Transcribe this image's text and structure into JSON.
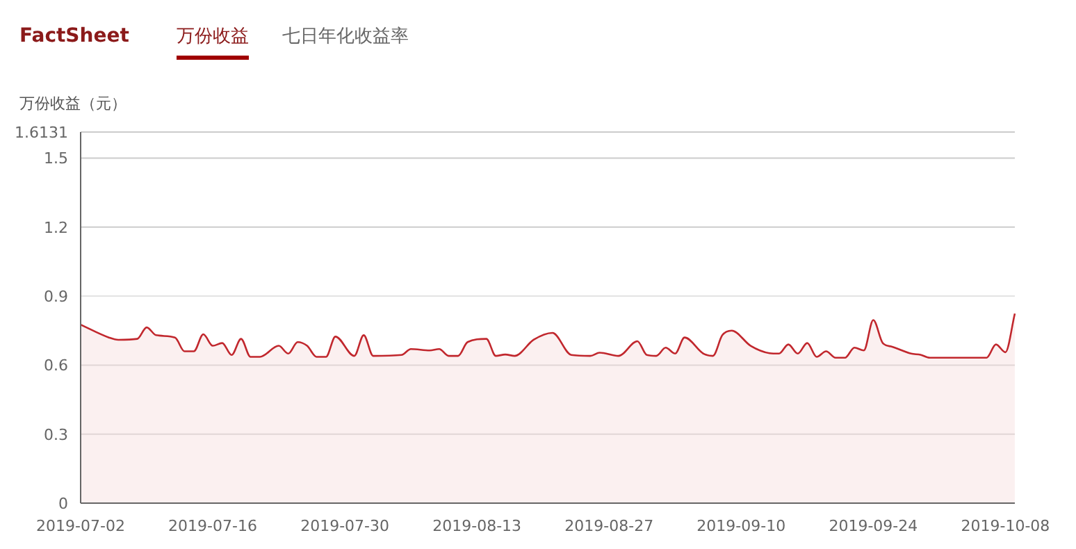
{
  "chart_data": {
    "type": "area",
    "title": "FactSheet",
    "annotations": [
      "万份收益",
      "七日年化收益率"
    ],
    "ylabel": "万份收益（元）",
    "x": [
      "2019-07-02",
      "2019-07-05",
      "2019-07-06",
      "2019-07-08",
      "2019-07-09",
      "2019-07-10",
      "2019-07-12",
      "2019-07-13",
      "2019-07-14",
      "2019-07-15",
      "2019-07-16",
      "2019-07-17",
      "2019-07-18",
      "2019-07-19",
      "2019-07-20",
      "2019-07-21",
      "2019-07-23",
      "2019-07-24",
      "2019-07-25",
      "2019-07-26",
      "2019-07-27",
      "2019-07-28",
      "2019-07-29",
      "2019-07-31",
      "2019-08-01",
      "2019-08-02",
      "2019-08-05",
      "2019-08-06",
      "2019-08-08",
      "2019-08-09",
      "2019-08-10",
      "2019-08-11",
      "2019-08-12",
      "2019-08-14",
      "2019-08-15",
      "2019-08-16",
      "2019-08-17",
      "2019-08-19",
      "2019-08-21",
      "2019-08-23",
      "2019-08-25",
      "2019-08-26",
      "2019-08-28",
      "2019-08-30",
      "2019-08-31",
      "2019-09-01",
      "2019-09-02",
      "2019-09-03",
      "2019-09-04",
      "2019-09-06",
      "2019-09-07",
      "2019-09-08",
      "2019-09-09",
      "2019-09-11",
      "2019-09-13",
      "2019-09-14",
      "2019-09-15",
      "2019-09-16",
      "2019-09-17",
      "2019-09-18",
      "2019-09-19",
      "2019-09-20",
      "2019-09-21",
      "2019-09-22",
      "2019-09-23",
      "2019-09-24",
      "2019-09-25",
      "2019-09-26",
      "2019-09-28",
      "2019-09-29",
      "2019-09-30",
      "2019-10-06",
      "2019-10-07",
      "2019-10-08",
      "2019-10-09"
    ],
    "series": [
      {
        "color": "#c1272d",
        "values": [
          0.776,
          0.72,
          0.71,
          0.714,
          0.764,
          0.73,
          0.72,
          0.66,
          0.66,
          0.734,
          0.684,
          0.696,
          0.644,
          0.714,
          0.636,
          0.636,
          0.684,
          0.65,
          0.7,
          0.684,
          0.636,
          0.636,
          0.724,
          0.64,
          0.73,
          0.64,
          0.644,
          0.67,
          0.664,
          0.67,
          0.64,
          0.64,
          0.7,
          0.714,
          0.64,
          0.646,
          0.64,
          0.71,
          0.74,
          0.644,
          0.64,
          0.654,
          0.64,
          0.704,
          0.644,
          0.64,
          0.676,
          0.65,
          0.72,
          0.65,
          0.64,
          0.73,
          0.75,
          0.684,
          0.652,
          0.65,
          0.69,
          0.65,
          0.696,
          0.636,
          0.66,
          0.632,
          0.632,
          0.676,
          0.664,
          0.796,
          0.696,
          0.68,
          0.65,
          0.645,
          0.632,
          0.632,
          0.69,
          0.656,
          0.824
        ]
      }
    ],
    "xlim": [
      "2019-07-02",
      "2019-10-09"
    ],
    "xticks": [
      "2019-07-02",
      "2019-07-16",
      "2019-07-30",
      "2019-08-13",
      "2019-08-27",
      "2019-09-10",
      "2019-09-24",
      "2019-10-08"
    ],
    "ylim": [
      0,
      1.6131
    ],
    "yticks": [
      0,
      0.3,
      0.6,
      0.9,
      1.2,
      1.5,
      1.6131
    ],
    "grid": "y"
  }
}
